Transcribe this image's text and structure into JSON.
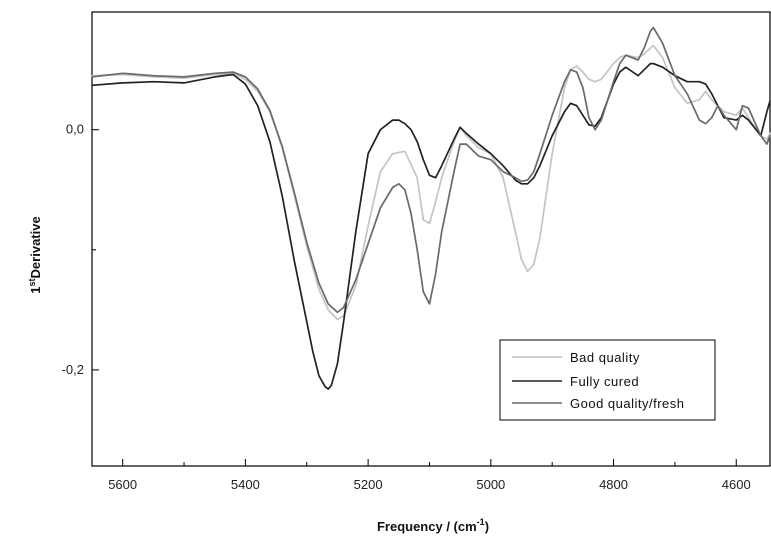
{
  "chart_data": {
    "type": "line",
    "xlabel": "Frequency / (cm",
    "xlabel_sup": "-1",
    "xlabel_suffix": ")",
    "ylabel_prefix": "1",
    "ylabel_sup": "st",
    "ylabel_main": "Derivative",
    "xlim": [
      5650,
      4545
    ],
    "ylim": [
      -0.28,
      0.098
    ],
    "x_reversed": true,
    "grid": false,
    "legend_position": "bottom-right",
    "x_ticks": [
      5600,
      5400,
      5200,
      5000,
      4800,
      4600
    ],
    "x_tick_labels": [
      "5600",
      "5400",
      "5200",
      "5000",
      "4800",
      "4600"
    ],
    "y_ticks": [
      0.0,
      -0.2
    ],
    "y_tick_labels": [
      "0,0",
      "-0,2"
    ],
    "series": [
      {
        "name": "Bad quality",
        "color": "#c4c4c4",
        "x": [
          5650,
          5600,
          5550,
          5500,
          5450,
          5420,
          5400,
          5380,
          5360,
          5340,
          5320,
          5300,
          5280,
          5265,
          5250,
          5240,
          5220,
          5200,
          5180,
          5160,
          5140,
          5120,
          5110,
          5100,
          5090,
          5080,
          5060,
          5050,
          5040,
          5020,
          5000,
          4980,
          4960,
          4950,
          4940,
          4930,
          4920,
          4900,
          4880,
          4870,
          4860,
          4850,
          4840,
          4830,
          4820,
          4800,
          4790,
          4780,
          4760,
          4750,
          4740,
          4735,
          4720,
          4700,
          4680,
          4660,
          4650,
          4640,
          4630,
          4620,
          4600,
          4590,
          4580,
          4560,
          4550,
          4545
        ],
        "y": [
          0.045,
          0.046,
          0.044,
          0.043,
          0.046,
          0.047,
          0.042,
          0.032,
          0.015,
          -0.015,
          -0.055,
          -0.097,
          -0.133,
          -0.15,
          -0.158,
          -0.155,
          -0.13,
          -0.08,
          -0.035,
          -0.02,
          -0.018,
          -0.04,
          -0.075,
          -0.078,
          -0.06,
          -0.04,
          -0.01,
          0.002,
          -0.005,
          -0.015,
          -0.02,
          -0.04,
          -0.085,
          -0.108,
          -0.118,
          -0.112,
          -0.09,
          -0.02,
          0.035,
          0.05,
          0.053,
          0.048,
          0.042,
          0.04,
          0.042,
          0.055,
          0.06,
          0.062,
          0.06,
          0.063,
          0.068,
          0.07,
          0.06,
          0.035,
          0.022,
          0.025,
          0.032,
          0.025,
          0.02,
          0.015,
          0.012,
          0.018,
          0.01,
          -0.005,
          -0.008,
          -0.003
        ]
      },
      {
        "name": "Fully cured",
        "color": "#222222",
        "x": [
          5650,
          5600,
          5550,
          5500,
          5450,
          5420,
          5400,
          5380,
          5360,
          5340,
          5320,
          5300,
          5290,
          5280,
          5270,
          5265,
          5260,
          5250,
          5240,
          5220,
          5200,
          5180,
          5160,
          5150,
          5140,
          5130,
          5120,
          5110,
          5100,
          5090,
          5080,
          5060,
          5050,
          5040,
          5020,
          5000,
          4980,
          4960,
          4950,
          4940,
          4930,
          4920,
          4900,
          4880,
          4870,
          4860,
          4850,
          4840,
          4830,
          4820,
          4800,
          4790,
          4780,
          4760,
          4750,
          4740,
          4735,
          4720,
          4700,
          4680,
          4660,
          4650,
          4640,
          4630,
          4620,
          4600,
          4590,
          4580,
          4560,
          4550,
          4545
        ],
        "y": [
          0.037,
          0.039,
          0.04,
          0.039,
          0.044,
          0.046,
          0.038,
          0.02,
          -0.01,
          -0.055,
          -0.11,
          -0.16,
          -0.185,
          -0.205,
          -0.214,
          -0.216,
          -0.213,
          -0.195,
          -0.16,
          -0.085,
          -0.02,
          0.0,
          0.008,
          0.008,
          0.005,
          0.0,
          -0.01,
          -0.025,
          -0.038,
          -0.04,
          -0.03,
          -0.008,
          0.002,
          -0.003,
          -0.012,
          -0.02,
          -0.03,
          -0.042,
          -0.045,
          -0.045,
          -0.04,
          -0.03,
          -0.005,
          0.015,
          0.022,
          0.02,
          0.012,
          0.004,
          0.003,
          0.01,
          0.038,
          0.048,
          0.052,
          0.045,
          0.05,
          0.055,
          0.055,
          0.052,
          0.045,
          0.04,
          0.04,
          0.038,
          0.03,
          0.02,
          0.01,
          0.008,
          0.012,
          0.008,
          -0.005,
          0.015,
          0.024
        ]
      },
      {
        "name": "Good quality/fresh",
        "color": "#6a6a6a",
        "x": [
          5650,
          5600,
          5550,
          5500,
          5450,
          5420,
          5400,
          5380,
          5360,
          5340,
          5320,
          5300,
          5280,
          5265,
          5250,
          5240,
          5220,
          5200,
          5180,
          5160,
          5150,
          5140,
          5130,
          5120,
          5110,
          5100,
          5090,
          5080,
          5060,
          5050,
          5040,
          5020,
          5000,
          4980,
          4960,
          4950,
          4940,
          4930,
          4920,
          4900,
          4880,
          4870,
          4860,
          4850,
          4840,
          4830,
          4820,
          4800,
          4790,
          4780,
          4760,
          4750,
          4740,
          4735,
          4720,
          4700,
          4680,
          4660,
          4650,
          4640,
          4630,
          4620,
          4600,
          4590,
          4580,
          4560,
          4550,
          4545
        ],
        "y": [
          0.044,
          0.047,
          0.045,
          0.044,
          0.047,
          0.048,
          0.044,
          0.034,
          0.016,
          -0.014,
          -0.053,
          -0.094,
          -0.128,
          -0.145,
          -0.152,
          -0.148,
          -0.125,
          -0.095,
          -0.065,
          -0.048,
          -0.045,
          -0.05,
          -0.07,
          -0.1,
          -0.135,
          -0.145,
          -0.12,
          -0.085,
          -0.035,
          -0.012,
          -0.012,
          -0.022,
          -0.025,
          -0.035,
          -0.04,
          -0.043,
          -0.042,
          -0.035,
          -0.02,
          0.012,
          0.04,
          0.05,
          0.048,
          0.035,
          0.01,
          0.0,
          0.008,
          0.04,
          0.055,
          0.062,
          0.058,
          0.068,
          0.082,
          0.085,
          0.072,
          0.045,
          0.03,
          0.008,
          0.005,
          0.01,
          0.02,
          0.012,
          0.0,
          0.02,
          0.018,
          -0.005,
          -0.012,
          -0.005
        ]
      }
    ]
  }
}
